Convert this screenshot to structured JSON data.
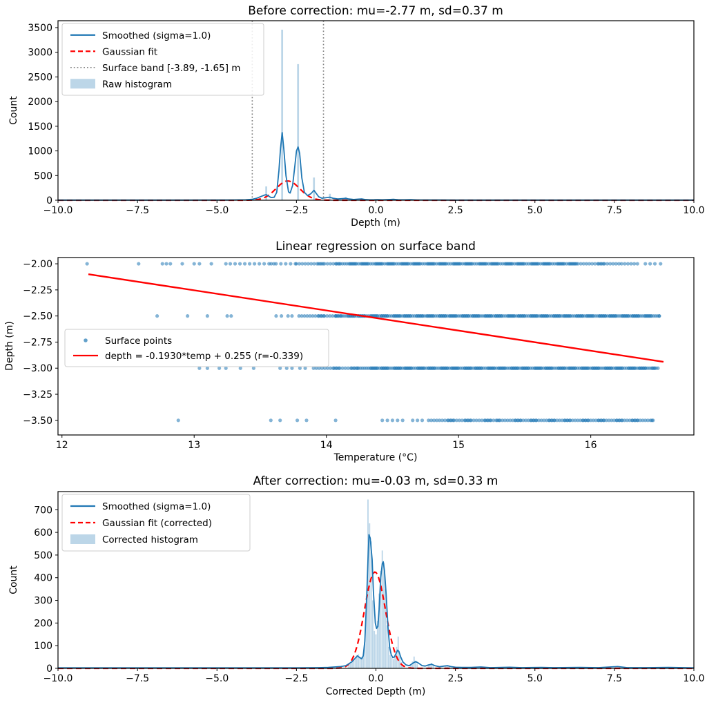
{
  "figure": {
    "background": "#ffffff"
  },
  "colors": {
    "smoothed": "#1f77b4",
    "gaussian": "#ff0000",
    "band": "#7f7f7f",
    "histogram": "#bcd6e8",
    "scatter": "#1f77b4",
    "regression": "#ff0000",
    "axis": "#000000",
    "legend_edge": "#cccccc"
  },
  "chart_data": [
    {
      "type": "histogram_line",
      "title": "Before correction: mu=-2.77 m, sd=0.37 m",
      "xlabel": "Depth (m)",
      "ylabel": "Count",
      "xlim": [
        -10,
        10
      ],
      "ylim": [
        0,
        3640
      ],
      "grid": false,
      "legend_loc": "upper left",
      "xticks": [
        [
          -10,
          "−10.0"
        ],
        [
          -7.5,
          "−7.5"
        ],
        [
          -5,
          "−5.0"
        ],
        [
          -2.5,
          "−2.5"
        ],
        [
          0,
          "0.0"
        ],
        [
          2.5,
          "2.5"
        ],
        [
          5,
          "5.0"
        ],
        [
          7.5,
          "7.5"
        ],
        [
          10,
          "10.0"
        ]
      ],
      "yticks": [
        [
          0,
          "0"
        ],
        [
          500,
          "500"
        ],
        [
          1000,
          "1000"
        ],
        [
          1500,
          "1500"
        ],
        [
          2000,
          "2000"
        ],
        [
          2500,
          "2500"
        ],
        [
          3000,
          "3000"
        ],
        [
          3500,
          "3500"
        ]
      ],
      "legend": [
        {
          "swatch": "line",
          "color": "#1f77b4",
          "label": "Smoothed (sigma=1.0)"
        },
        {
          "swatch": "dash",
          "color": "#ff0000",
          "label": "Gaussian fit"
        },
        {
          "swatch": "dot",
          "color": "#7f7f7f",
          "label": "Surface band [-3.89, -1.65] m"
        },
        {
          "swatch": "patch",
          "color": "#bcd6e8",
          "label": "Raw histogram"
        }
      ],
      "bars": {
        "binwidth": 0.06,
        "points": [
          [
            -3.45,
            280
          ],
          [
            -2.95,
            3458
          ],
          [
            -2.45,
            2760
          ],
          [
            -1.95,
            460
          ],
          [
            -1.45,
            130
          ],
          [
            -0.95,
            65
          ],
          [
            -0.45,
            38
          ],
          [
            0.05,
            18
          ],
          [
            0.55,
            22
          ],
          [
            1.05,
            12
          ]
        ]
      },
      "smoothed": [
        [
          -10,
          3
        ],
        [
          -6,
          3
        ],
        [
          -4.5,
          4
        ],
        [
          -4.1,
          8
        ],
        [
          -3.9,
          18
        ],
        [
          -3.75,
          40
        ],
        [
          -3.6,
          80
        ],
        [
          -3.5,
          105
        ],
        [
          -3.45,
          112
        ],
        [
          -3.4,
          95
        ],
        [
          -3.3,
          55
        ],
        [
          -3.2,
          60
        ],
        [
          -3.12,
          160
        ],
        [
          -3.05,
          600
        ],
        [
          -3.0,
          1050
        ],
        [
          -2.95,
          1370
        ],
        [
          -2.9,
          1050
        ],
        [
          -2.83,
          500
        ],
        [
          -2.75,
          170
        ],
        [
          -2.7,
          145
        ],
        [
          -2.62,
          300
        ],
        [
          -2.55,
          700
        ],
        [
          -2.5,
          1000
        ],
        [
          -2.45,
          1080
        ],
        [
          -2.4,
          950
        ],
        [
          -2.33,
          450
        ],
        [
          -2.25,
          160
        ],
        [
          -2.15,
          95
        ],
        [
          -2.05,
          130
        ],
        [
          -1.95,
          200
        ],
        [
          -1.88,
          140
        ],
        [
          -1.8,
          70
        ],
        [
          -1.7,
          40
        ],
        [
          -1.58,
          50
        ],
        [
          -1.45,
          62
        ],
        [
          -1.35,
          40
        ],
        [
          -1.2,
          25
        ],
        [
          -1.05,
          32
        ],
        [
          -0.95,
          38
        ],
        [
          -0.85,
          25
        ],
        [
          -0.7,
          15
        ],
        [
          -0.55,
          22
        ],
        [
          -0.45,
          26
        ],
        [
          -0.35,
          15
        ],
        [
          -0.2,
          9
        ],
        [
          -0.05,
          10
        ],
        [
          0.05,
          13
        ],
        [
          0.2,
          8
        ],
        [
          0.4,
          14
        ],
        [
          0.55,
          18
        ],
        [
          0.7,
          10
        ],
        [
          0.9,
          8
        ],
        [
          1.1,
          11
        ],
        [
          1.3,
          6
        ],
        [
          1.6,
          4
        ],
        [
          2.0,
          4
        ],
        [
          2.5,
          3
        ],
        [
          3.5,
          3
        ],
        [
          5,
          3
        ],
        [
          7,
          3
        ],
        [
          9,
          3
        ],
        [
          10,
          3
        ]
      ],
      "gaussian": {
        "amp": 390,
        "mu": -2.77,
        "sd": 0.37
      },
      "band_lines": [
        -3.89,
        -1.65
      ]
    },
    {
      "type": "scatter_regression",
      "title": "Linear regression on surface band",
      "xlabel": "Temperature (°C)",
      "ylabel": "Depth (m)",
      "xlim": [
        11.97,
        16.78
      ],
      "ylim": [
        -3.64,
        -1.94
      ],
      "grid": false,
      "legend_loc": "center left",
      "xticks": [
        [
          12,
          "12"
        ],
        [
          13,
          "13"
        ],
        [
          14,
          "14"
        ],
        [
          15,
          "15"
        ],
        [
          16,
          "16"
        ]
      ],
      "yticks": [
        [
          -2.0,
          "−2.00"
        ],
        [
          -2.25,
          "−2.25"
        ],
        [
          -2.5,
          "−2.50"
        ],
        [
          -2.75,
          "−2.75"
        ],
        [
          -3.0,
          "−3.00"
        ],
        [
          -3.25,
          "−3.25"
        ],
        [
          -3.5,
          "−3.50"
        ]
      ],
      "legend": [
        {
          "swatch": "marker",
          "color": "#1f77b4",
          "label": "Surface points"
        },
        {
          "swatch": "line",
          "color": "#ff0000",
          "label": "depth = -0.1930*temp + 0.255  (r=-0.339)"
        }
      ],
      "rows": [
        {
          "depth": -2.0,
          "singles": [
            12.19,
            12.58,
            12.76,
            12.79,
            12.82,
            12.91,
            13.0,
            13.04,
            13.13,
            13.24
          ],
          "segments": [
            [
              13.3,
              13.76,
              16
            ],
            [
              13.8,
              14.08,
              18
            ],
            [
              14.1,
              15.9,
              175
            ],
            [
              15.93,
              16.1,
              12
            ],
            [
              16.13,
              16.21,
              6
            ],
            [
              16.26,
              16.35,
              6
            ],
            [
              16.44,
              16.5,
              3
            ],
            [
              16.55,
              16.56,
              1
            ]
          ]
        },
        {
          "depth": -2.5,
          "singles": [
            12.72,
            12.95,
            13.1,
            13.25,
            13.28,
            13.62,
            13.66,
            13.71,
            13.74
          ],
          "segments": [
            [
              13.82,
              14.1,
              20
            ],
            [
              14.1,
              16.5,
              265
            ],
            [
              16.54,
              16.55,
              1
            ]
          ]
        },
        {
          "depth": -3.0,
          "singles": [
            13.04,
            13.1,
            13.19,
            13.24,
            13.35,
            13.45,
            13.65,
            13.7,
            13.74,
            13.8,
            13.84
          ],
          "segments": [
            [
              13.93,
              14.25,
              22
            ],
            [
              14.27,
              16.5,
              240
            ]
          ]
        },
        {
          "depth": -3.5,
          "singles": [
            12.88,
            13.58,
            13.65,
            13.78,
            13.85,
            14.07
          ],
          "segments": [
            [
              14.45,
              14.58,
              5
            ],
            [
              14.68,
              14.74,
              3
            ],
            [
              14.8,
              15.3,
              35
            ],
            [
              15.32,
              16.45,
              85
            ],
            [
              16.48,
              16.5,
              1
            ]
          ]
        }
      ],
      "regression": {
        "slope": -0.193,
        "intercept": 0.255,
        "x_start": 12.2,
        "x_end": 16.55,
        "r": -0.339
      }
    },
    {
      "type": "histogram_line",
      "title": "After correction: mu=-0.03 m, sd=0.33 m",
      "xlabel": "Corrected Depth (m)",
      "ylabel": "Count",
      "xlim": [
        -10,
        10
      ],
      "ylim": [
        0,
        780
      ],
      "grid": false,
      "legend_loc": "upper left",
      "xticks": [
        [
          -10,
          "−10.0"
        ],
        [
          -7.5,
          "−7.5"
        ],
        [
          -5,
          "−5.0"
        ],
        [
          -2.5,
          "−2.5"
        ],
        [
          0,
          "0.0"
        ],
        [
          2.5,
          "2.5"
        ],
        [
          5,
          "5.0"
        ],
        [
          7.5,
          "7.5"
        ],
        [
          10,
          "10.0"
        ]
      ],
      "yticks": [
        [
          0,
          "0"
        ],
        [
          100,
          "100"
        ],
        [
          200,
          "200"
        ],
        [
          300,
          "300"
        ],
        [
          400,
          "400"
        ],
        [
          500,
          "500"
        ],
        [
          600,
          "600"
        ],
        [
          700,
          "700"
        ]
      ],
      "legend": [
        {
          "swatch": "line",
          "color": "#1f77b4",
          "label": "Smoothed (sigma=1.0)"
        },
        {
          "swatch": "dash",
          "color": "#ff0000",
          "label": "Gaussian fit (corrected)"
        },
        {
          "swatch": "patch",
          "color": "#bcd6e8",
          "label": "Corrected histogram"
        }
      ],
      "bars": {
        "binwidth": 0.04,
        "points": [
          [
            -0.85,
            15
          ],
          [
            -0.8,
            20
          ],
          [
            -0.75,
            30
          ],
          [
            -0.7,
            40
          ],
          [
            -0.65,
            50
          ],
          [
            -0.6,
            58
          ],
          [
            -0.55,
            62
          ],
          [
            -0.5,
            45
          ],
          [
            -0.45,
            50
          ],
          [
            -0.4,
            60
          ],
          [
            -0.35,
            130
          ],
          [
            -0.3,
            320
          ],
          [
            -0.25,
            745
          ],
          [
            -0.2,
            640
          ],
          [
            -0.15,
            560
          ],
          [
            -0.1,
            300
          ],
          [
            -0.05,
            165
          ],
          [
            0.0,
            150
          ],
          [
            0.05,
            210
          ],
          [
            0.1,
            330
          ],
          [
            0.15,
            430
          ],
          [
            0.2,
            520
          ],
          [
            0.25,
            465
          ],
          [
            0.3,
            350
          ],
          [
            0.35,
            190
          ],
          [
            0.4,
            95
          ],
          [
            0.45,
            58
          ],
          [
            0.5,
            48
          ],
          [
            0.55,
            42
          ],
          [
            0.6,
            60
          ],
          [
            0.65,
            95
          ],
          [
            0.7,
            140
          ],
          [
            0.75,
            58
          ],
          [
            0.8,
            28
          ],
          [
            0.85,
            15
          ],
          [
            1.1,
            18
          ],
          [
            1.15,
            30
          ],
          [
            1.2,
            52
          ],
          [
            1.25,
            32
          ],
          [
            1.3,
            18
          ],
          [
            1.65,
            12
          ],
          [
            1.7,
            16
          ],
          [
            1.75,
            24
          ],
          [
            1.8,
            14
          ],
          [
            2.2,
            10
          ],
          [
            2.25,
            13
          ],
          [
            2.3,
            8
          ]
        ]
      },
      "smoothed": [
        [
          -10,
          2
        ],
        [
          -5,
          2
        ],
        [
          -2.5,
          2
        ],
        [
          -1.8,
          3
        ],
        [
          -1.5,
          4
        ],
        [
          -1.3,
          6
        ],
        [
          -1.1,
          8
        ],
        [
          -0.95,
          12
        ],
        [
          -0.85,
          20
        ],
        [
          -0.75,
          30
        ],
        [
          -0.65,
          45
        ],
        [
          -0.58,
          55
        ],
        [
          -0.52,
          48
        ],
        [
          -0.45,
          42
        ],
        [
          -0.4,
          55
        ],
        [
          -0.35,
          120
        ],
        [
          -0.3,
          280
        ],
        [
          -0.25,
          480
        ],
        [
          -0.22,
          590
        ],
        [
          -0.18,
          575
        ],
        [
          -0.12,
          480
        ],
        [
          -0.08,
          340
        ],
        [
          -0.02,
          200
        ],
        [
          0.02,
          176
        ],
        [
          0.06,
          185
        ],
        [
          0.1,
          260
        ],
        [
          0.15,
          400
        ],
        [
          0.2,
          462
        ],
        [
          0.23,
          470
        ],
        [
          0.27,
          430
        ],
        [
          0.32,
          330
        ],
        [
          0.38,
          180
        ],
        [
          0.43,
          95
        ],
        [
          0.48,
          60
        ],
        [
          0.53,
          48
        ],
        [
          0.58,
          50
        ],
        [
          0.63,
          65
        ],
        [
          0.68,
          80
        ],
        [
          0.72,
          75
        ],
        [
          0.78,
          50
        ],
        [
          0.85,
          28
        ],
        [
          0.95,
          15
        ],
        [
          1.05,
          12
        ],
        [
          1.15,
          22
        ],
        [
          1.25,
          30
        ],
        [
          1.35,
          22
        ],
        [
          1.45,
          12
        ],
        [
          1.55,
          10
        ],
        [
          1.65,
          15
        ],
        [
          1.75,
          18
        ],
        [
          1.85,
          12
        ],
        [
          2.0,
          7
        ],
        [
          2.15,
          10
        ],
        [
          2.25,
          12
        ],
        [
          2.35,
          8
        ],
        [
          2.5,
          5
        ],
        [
          2.7,
          4
        ],
        [
          3.0,
          4
        ],
        [
          3.3,
          6
        ],
        [
          3.6,
          3
        ],
        [
          4.2,
          5
        ],
        [
          4.6,
          3
        ],
        [
          5.2,
          4
        ],
        [
          5.6,
          3
        ],
        [
          6.4,
          4
        ],
        [
          7.0,
          3
        ],
        [
          7.6,
          8
        ],
        [
          7.9,
          3
        ],
        [
          8.5,
          3
        ],
        [
          9.2,
          4
        ],
        [
          10,
          2
        ]
      ],
      "gaussian": {
        "amp": 425,
        "mu": -0.03,
        "sd": 0.33
      },
      "band_lines": []
    }
  ]
}
